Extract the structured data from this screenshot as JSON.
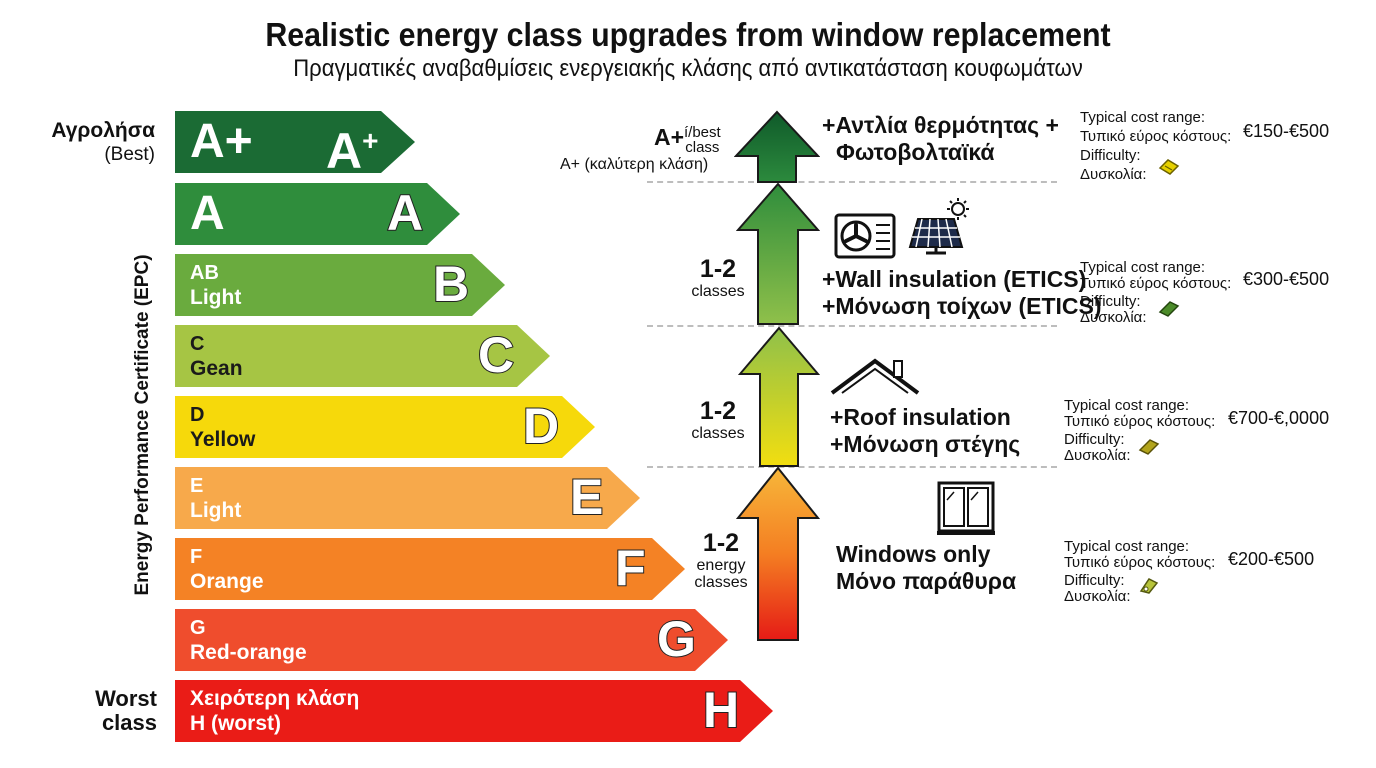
{
  "title": "Realistic energy class upgrades from window replacement",
  "subtitle": "Πραγματικές αναβαθμίσεις ενεργειακής κλάσης από αντικατάσταση κουφωμάτων",
  "side_labels": {
    "best_line1": "Αγρολήσα",
    "best_line2": "(Best)",
    "worst_line1": "Worst",
    "worst_line2": "class",
    "vertical": "Energy Performance Certificate (EPC)"
  },
  "bands": [
    {
      "line1": "A+",
      "letter": "A+",
      "color": "#1b6b34"
    },
    {
      "line1": "A",
      "letter": "A",
      "color": "#2f8d3c"
    },
    {
      "line1": "AB",
      "line2": "Light",
      "letter": "B",
      "color": "#6aab3e"
    },
    {
      "line1": "C",
      "line2": "Gean",
      "letter": "C",
      "color": "#a6c544"
    },
    {
      "line1": "D",
      "line2": "Yellow",
      "letter": "D",
      "color": "#f6d90b"
    },
    {
      "line1": "E",
      "line2": "Light",
      "letter": "E",
      "color": "#f7a94b"
    },
    {
      "line1": "F",
      "line2": "Orange",
      "letter": "F",
      "color": "#f48225"
    },
    {
      "line1": "G",
      "line2": "Red-orange",
      "letter": "G",
      "color": "#ef4d2d"
    },
    {
      "line1": "Χειρότερη κλάση",
      "line2": "H (worst)",
      "letter": "H",
      "color": "#ea1c17"
    }
  ],
  "top_class": {
    "main": "A+",
    "small1": "í/best",
    "small2": "class",
    "greek": "A+ (καλύτερη κλάση)"
  },
  "steps": [
    {
      "num": "1-2",
      "unit1": "classes"
    },
    {
      "num": "1-2",
      "unit1": "classes"
    },
    {
      "num": "1-2",
      "unit1": "energy",
      "unit2": "classes"
    }
  ],
  "upgrades": [
    {
      "line1": "+Αντλία θερμότητας +",
      "line2": "Φωτοβολταϊκά",
      "icons": [
        "heat-pump-icon",
        "solar-panel-icon"
      ]
    },
    {
      "line1": "+Wall insulation (ETICS)",
      "line2": "+Μόνωση τοίχων (ETICS)"
    },
    {
      "line1": "+Roof insulation",
      "line2": "+Μόνωση στέγης",
      "icon": "house-roof-icon"
    },
    {
      "line1": "Windows only",
      "line2": "Μόνο παράθυρα",
      "icon": "window-icon"
    }
  ],
  "costs": [
    {
      "label1": "Typical cost range:",
      "label2": "Τυπικό εύρος κόστους:",
      "price": "€150-€500",
      "label3": "Difficulty:",
      "label4": "Δυσκολία:",
      "icon_color": "#e6d100"
    },
    {
      "label1": "Typical cost range:",
      "label2": "Τυπικό εύρος κόστους:",
      "price": "€300-€500",
      "label3": "Difficulty:",
      "label4": "Δυσκολία:",
      "icon_color": "#4c8c2a"
    },
    {
      "label1": "Typical cost range:",
      "label2": "Τυπικό εύρος κόστους:",
      "price": "€700-€,0000",
      "label3": "Difficulty:",
      "label4": "Δυσκολία:",
      "icon_color": "#b2a41c"
    },
    {
      "label1": "Typical cost range:",
      "label2": "Τυπικό εύρος κόστους:",
      "price": "€200-€500",
      "label3": "Difficulty:",
      "label4": "Δυσκολία:",
      "icon_color": "#b7c43a"
    }
  ]
}
